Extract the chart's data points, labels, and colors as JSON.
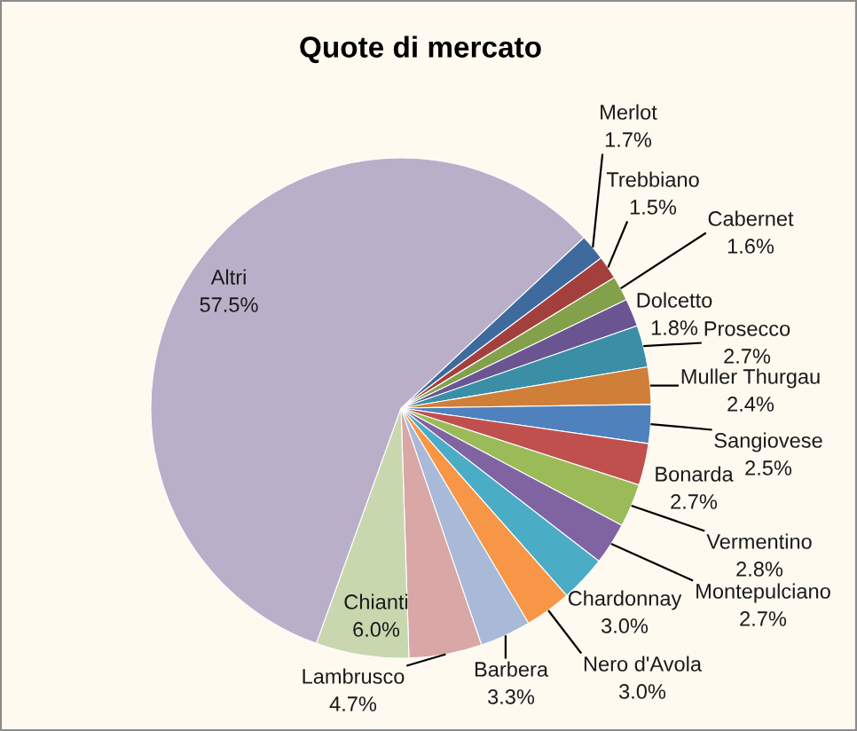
{
  "chart_data": {
    "type": "pie",
    "title": "Quote di mercato",
    "categories": [
      "Merlot",
      "Trebbiano",
      "Cabernet",
      "Dolcetto",
      "Prosecco",
      "Muller Thurgau",
      "Sangiovese",
      "Bonarda",
      "Vermentino",
      "Montepulciano",
      "Chardonnay",
      "Nero d'Avola",
      "Barbera",
      "Lambrusco",
      "Chianti",
      "Altri"
    ],
    "values": [
      1.7,
      1.5,
      1.6,
      1.8,
      2.7,
      2.4,
      2.5,
      2.7,
      2.8,
      2.7,
      3.0,
      3.0,
      3.3,
      4.7,
      6.0,
      57.5
    ],
    "value_labels": [
      "1.7%",
      "1.5%",
      "1.6%",
      "1.8%",
      "2.7%",
      "2.4%",
      "2.5%",
      "2.7%",
      "2.8%",
      "2.7%",
      "3.0%",
      "3.0%",
      "3.3%",
      "4.7%",
      "6.0%",
      "57.5%"
    ],
    "colors": [
      "#3f6a9e",
      "#a3403d",
      "#83a04a",
      "#6a5592",
      "#3a8fa6",
      "#d07f38",
      "#4f81bd",
      "#c0504d",
      "#9bbb59",
      "#8064a2",
      "#4bacc6",
      "#f79646",
      "#a9b9d8",
      "#d8a7a6",
      "#c9d7af",
      "#baafc9"
    ]
  }
}
